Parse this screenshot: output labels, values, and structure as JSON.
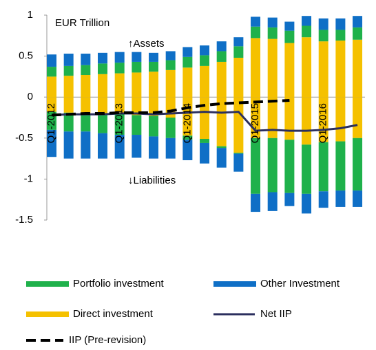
{
  "chart_data": {
    "type": "bar",
    "annotations": [
      "EUR Trillion",
      "↑Assets",
      "↓Liabilities"
    ],
    "categories": [
      "Q1-2012",
      null,
      null,
      null,
      "Q1-2013",
      null,
      null,
      null,
      "Q1-2014",
      null,
      null,
      null,
      "Q1-2015",
      null,
      null,
      null,
      "Q1-2016",
      null,
      null
    ],
    "series": [
      {
        "name": "Portfolio investment",
        "color": "#1fb14b",
        "values": [
          0.12,
          0.12,
          0.12,
          0.13,
          0.13,
          0.13,
          0.12,
          0.12,
          0.13,
          0.13,
          0.13,
          0.14,
          0.14,
          0.14,
          0.15,
          0.14,
          0.14,
          0.13,
          0.15
        ],
        "liabilities": [
          -0.22,
          -0.23,
          -0.22,
          -0.24,
          -0.25,
          -0.24,
          -0.25,
          -0.25,
          -0.05,
          -0.05,
          -0.02,
          -0.01,
          -0.68,
          -0.66,
          -0.65,
          -0.6,
          -0.6,
          -0.6,
          -0.64
        ]
      },
      {
        "name": "Other Investment",
        "color": "#0f6fc6",
        "values": [
          0.15,
          0.15,
          0.14,
          0.13,
          0.13,
          0.12,
          0.11,
          0.11,
          0.12,
          0.12,
          0.12,
          0.11,
          0.12,
          0.12,
          0.11,
          0.12,
          0.14,
          0.14,
          0.14
        ],
        "liabilities": [
          -0.33,
          -0.33,
          -0.33,
          -0.31,
          -0.29,
          -0.28,
          -0.27,
          -0.25,
          -0.25,
          -0.25,
          -0.24,
          -0.22,
          -0.22,
          -0.23,
          -0.16,
          -0.24,
          -0.2,
          -0.2,
          -0.2
        ]
      },
      {
        "name": "Direct investment",
        "color": "#f5c100",
        "values": [
          0.25,
          0.26,
          0.27,
          0.28,
          0.29,
          0.3,
          0.31,
          0.33,
          0.36,
          0.38,
          0.43,
          0.48,
          0.72,
          0.71,
          0.66,
          0.73,
          0.68,
          0.69,
          0.7
        ],
        "liabilities": [
          -0.18,
          -0.19,
          -0.2,
          -0.2,
          -0.21,
          -0.22,
          -0.23,
          -0.25,
          -0.47,
          -0.51,
          -0.6,
          -0.68,
          -0.5,
          -0.5,
          -0.52,
          -0.58,
          -0.55,
          -0.54,
          -0.5
        ]
      },
      {
        "name": "Net IIP",
        "color": "#2b2f5e",
        "type": "line",
        "values": [
          -0.22,
          -0.21,
          -0.21,
          -0.21,
          -0.2,
          -0.2,
          -0.21,
          -0.2,
          -0.19,
          -0.18,
          -0.19,
          -0.18,
          -0.41,
          -0.4,
          -0.41,
          -0.41,
          -0.4,
          -0.38,
          -0.34
        ]
      },
      {
        "name": "IIP (Pre-revision)",
        "color": "#000000",
        "type": "line",
        "dashed": true,
        "values": [
          -0.22,
          -0.21,
          -0.2,
          -0.2,
          -0.19,
          -0.19,
          -0.19,
          -0.17,
          -0.13,
          -0.1,
          -0.08,
          -0.07,
          -0.06,
          -0.05,
          -0.04,
          null,
          null,
          null,
          null
        ]
      }
    ],
    "ylim": [
      -1.5,
      1
    ],
    "yticks": [
      1,
      0.5,
      0,
      -0.5,
      -1,
      -1.5
    ],
    "grid": false
  }
}
